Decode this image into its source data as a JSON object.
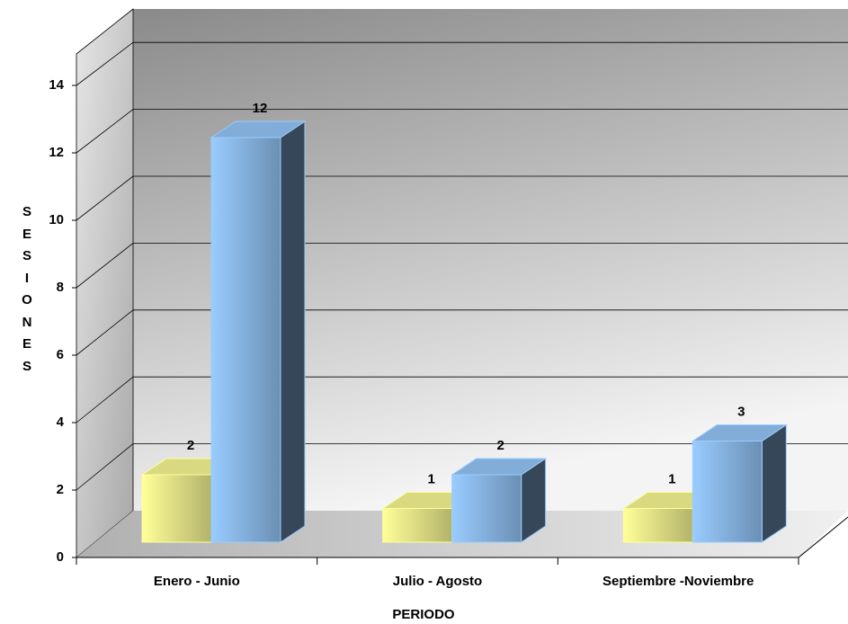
{
  "chart_data": {
    "type": "bar3d",
    "categories": [
      "Enero - Junio",
      "Julio - Agosto",
      "Septiembre -Noviembre"
    ],
    "series": [
      {
        "color": "#ffff99",
        "values": [
          2,
          1,
          1
        ]
      },
      {
        "color": "#99ccff",
        "values": [
          12,
          2,
          3
        ]
      }
    ],
    "ylim": [
      0,
      15
    ],
    "yticks": [
      0,
      2,
      4,
      6,
      8,
      10,
      12,
      14
    ],
    "grid": true,
    "xlabel": "PERIODO",
    "ylabel": "SESIONES"
  }
}
